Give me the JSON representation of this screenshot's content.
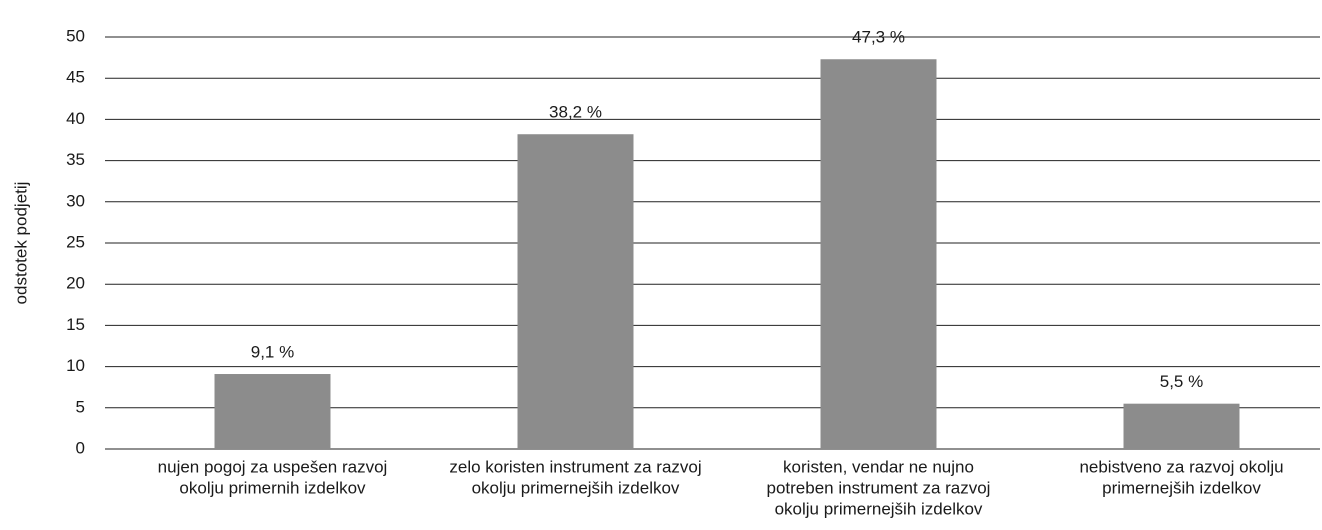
{
  "chart_data": {
    "type": "bar",
    "y_label": "odstotek podjetij",
    "categories": [
      [
        "nujen pogoj za uspešen razvoj",
        "okolju primernih izdelkov"
      ],
      [
        "zelo koristen instrument za razvoj",
        "okolju primernejših izdelkov"
      ],
      [
        "koristen, vendar ne nujno",
        "potreben instrument za razvoj",
        "okolju primernejših izdelkov"
      ],
      [
        "nebistveno za razvoj okolju",
        "primernejših izdelkov"
      ]
    ],
    "values": [
      9.1,
      38.2,
      47.3,
      5.5
    ],
    "value_labels": [
      "9,1 %",
      "38,2 %",
      "47,3 %",
      "5,5 %"
    ],
    "color": "#8c8c8c",
    "ylim": [
      0,
      50
    ],
    "yticks": [
      0,
      5,
      10,
      15,
      20,
      25,
      30,
      35,
      40,
      45,
      50
    ],
    "grid": true
  }
}
